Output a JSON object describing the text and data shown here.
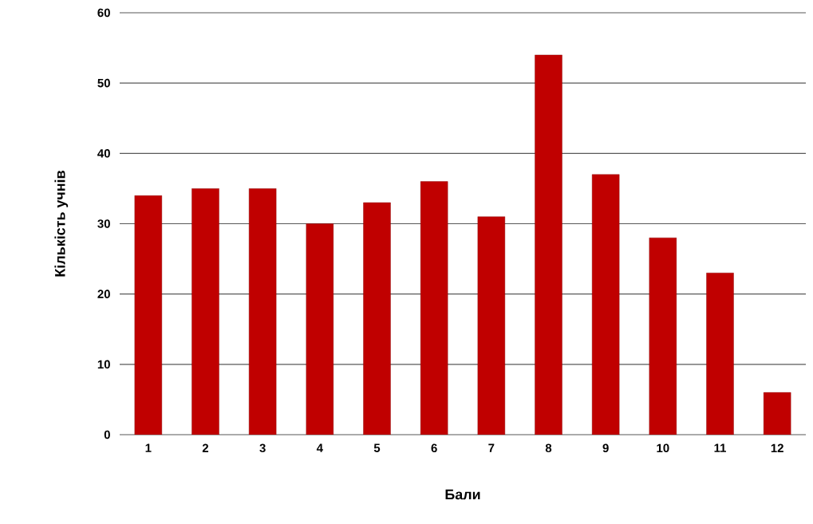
{
  "chart_data": {
    "type": "bar",
    "xlabel": "Бали",
    "ylabel": "Кількість учнів",
    "categories": [
      "1",
      "2",
      "3",
      "4",
      "5",
      "6",
      "7",
      "8",
      "9",
      "10",
      "11",
      "12"
    ],
    "values": [
      34,
      35,
      35,
      30,
      33,
      36,
      31,
      54,
      37,
      28,
      23,
      6
    ],
    "color": "#c00000",
    "ylim": [
      0,
      60
    ],
    "yticks": [
      0,
      10,
      20,
      30,
      40,
      50,
      60
    ],
    "grid": "y"
  }
}
